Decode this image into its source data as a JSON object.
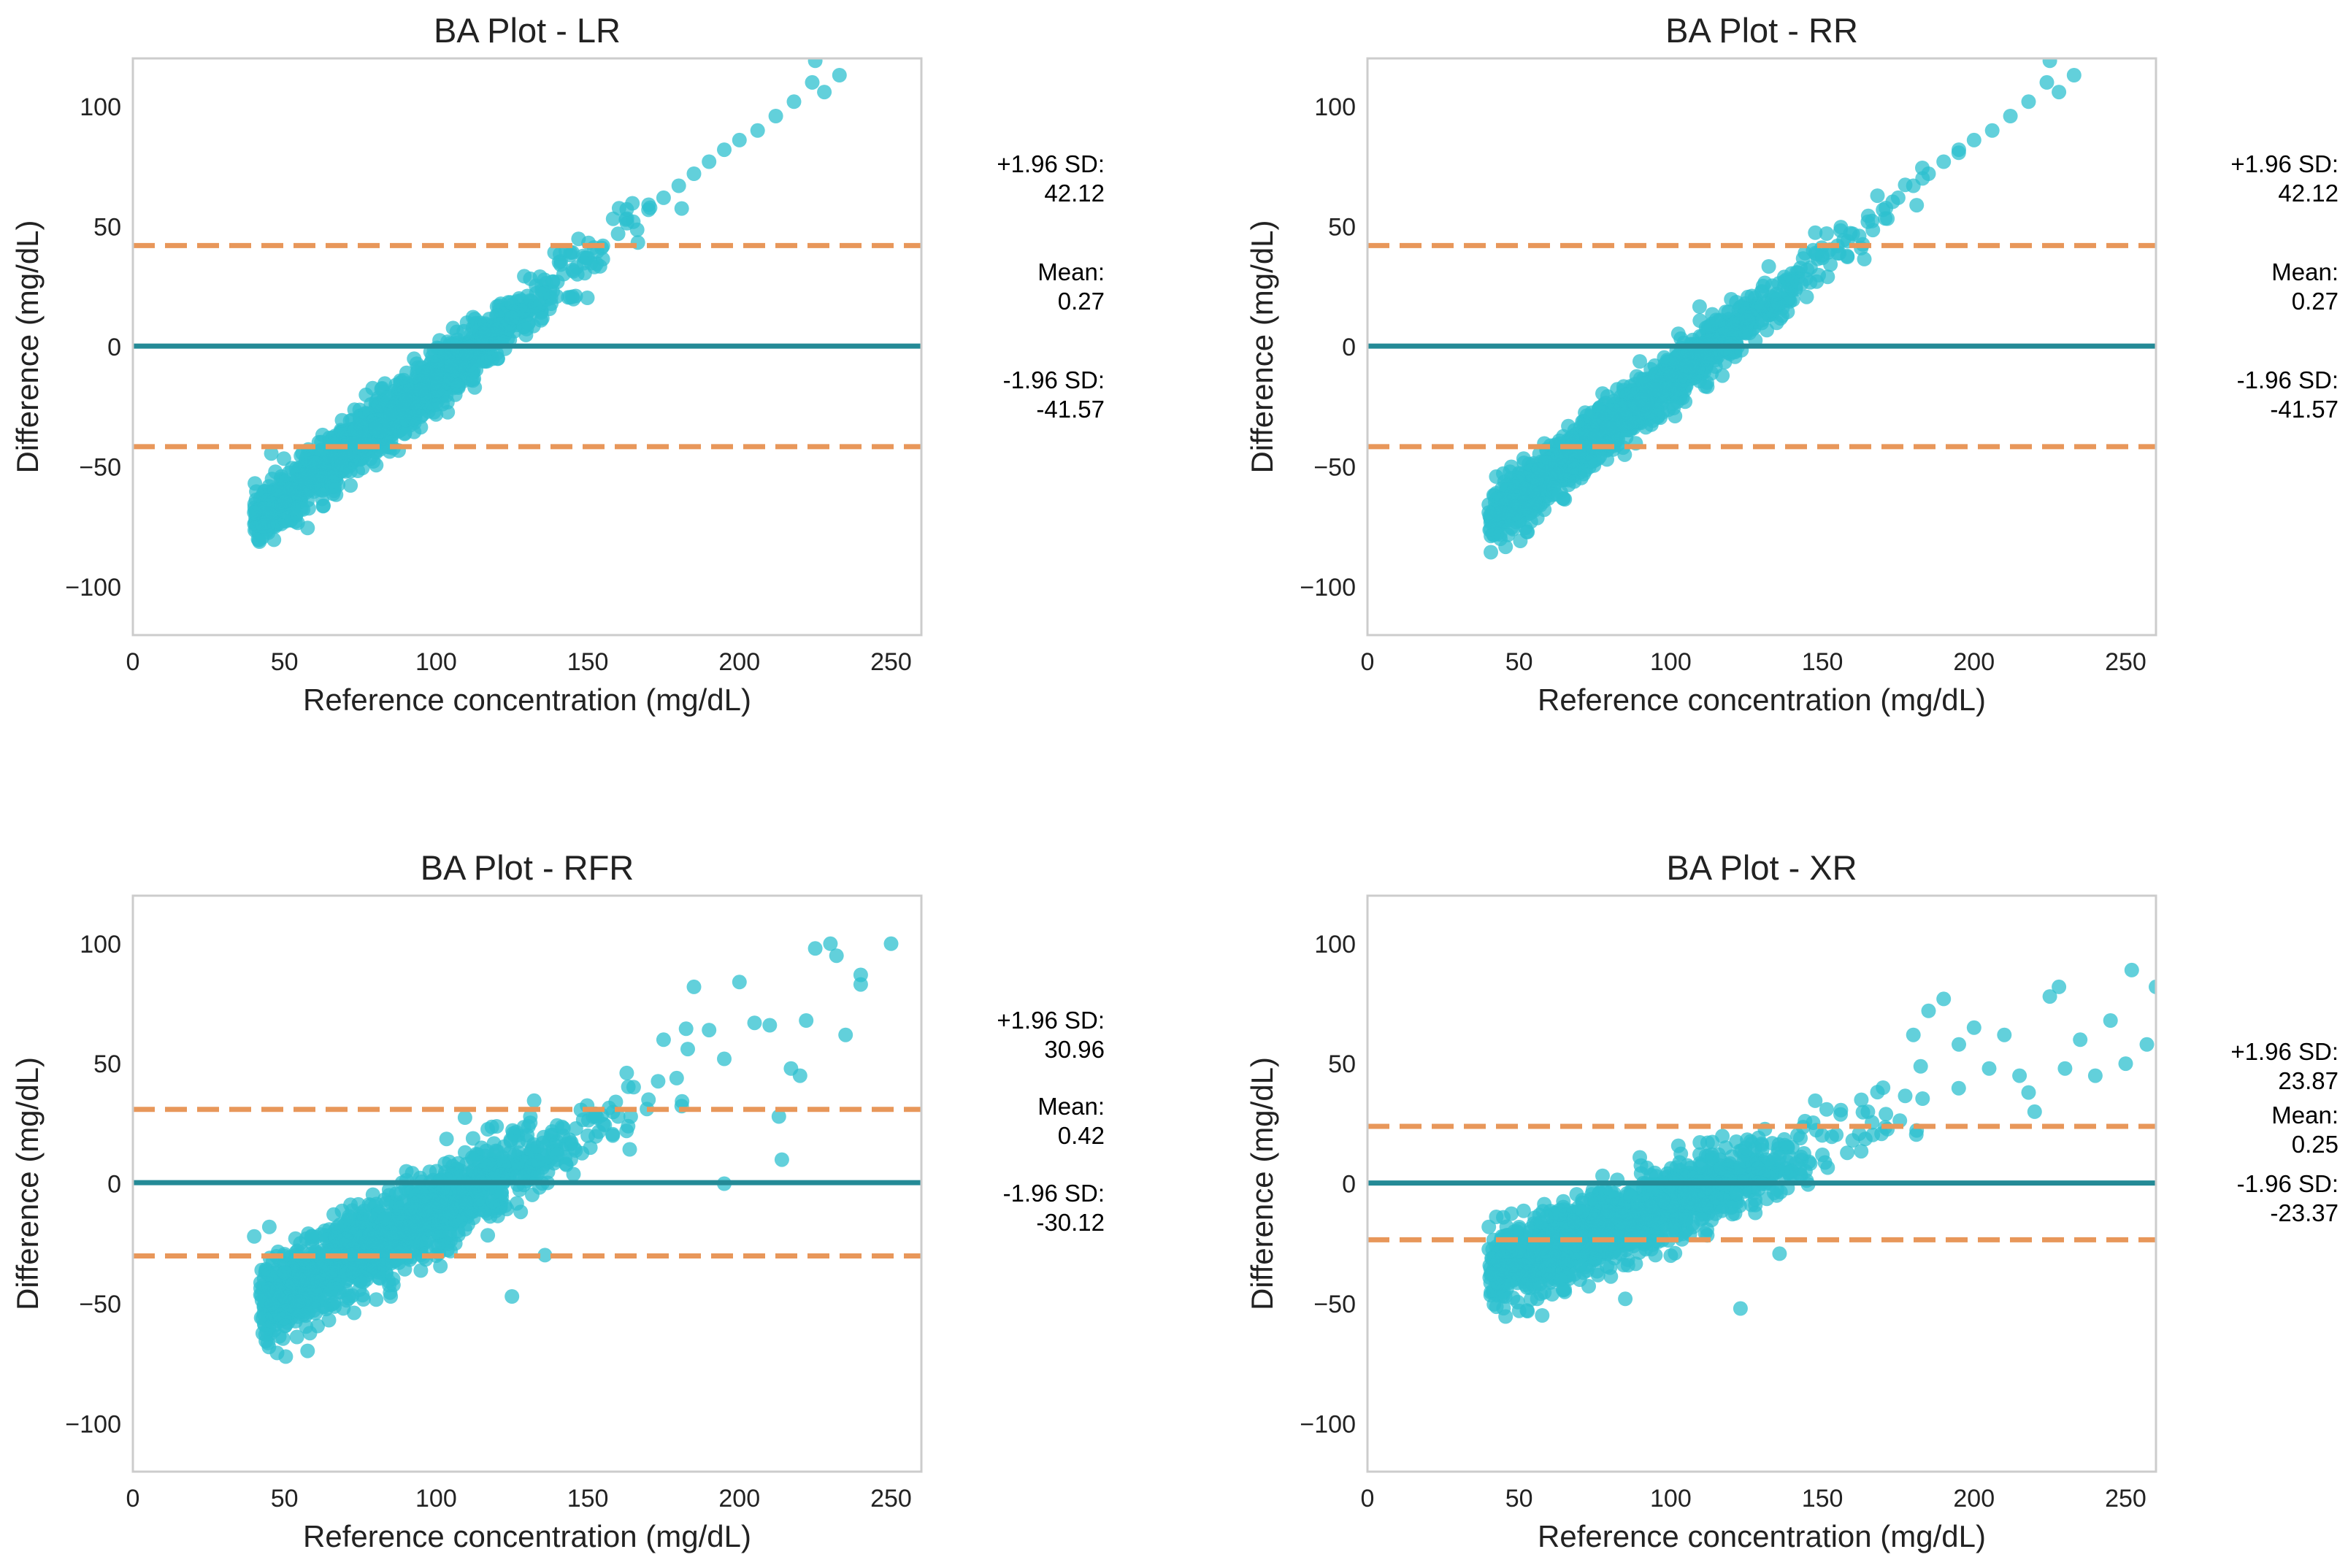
{
  "figure": {
    "layout": "2x2 grid",
    "colors": {
      "points": "#2ec0cf",
      "mean_line": "#248a96",
      "limit_lines": "#e8975a",
      "axes_frame": "#cccccc",
      "text": "#222222"
    }
  },
  "chart_data": [
    {
      "type": "scatter",
      "title": "BA Plot - LR",
      "xlabel": "Reference concentration (mg/dL)",
      "ylabel": "Difference (mg/dL)",
      "xlim": [
        0,
        260
      ],
      "ylim": [
        -120,
        120
      ],
      "xticks": [
        0,
        50,
        100,
        150,
        200,
        250
      ],
      "yticks": [
        -100,
        -50,
        0,
        50,
        100
      ],
      "grid": false,
      "mean": 0.27,
      "upper_loa": 42.12,
      "lower_loa": -41.57,
      "annotations": {
        "upper_label": "+1.96 SD:",
        "upper_value": "42.12",
        "mean_label": "Mean:",
        "mean_value": "0.27",
        "lower_label": "-1.96 SD:",
        "lower_value": "-41.57"
      },
      "point_cloud": {
        "x_range": [
          40,
          235
        ],
        "slope": 0.98,
        "intercept": -112,
        "noise_sd": 6
      },
      "points": [
        [
          40,
          -69
        ],
        [
          47,
          -52
        ],
        [
          52,
          -59
        ],
        [
          56,
          -55
        ],
        [
          60,
          -48
        ],
        [
          64,
          -46
        ],
        [
          70,
          -44
        ],
        [
          75,
          -38
        ],
        [
          80,
          -34
        ],
        [
          85,
          -28
        ],
        [
          90,
          -22
        ],
        [
          95,
          -18
        ],
        [
          100,
          -12
        ],
        [
          105,
          -8
        ],
        [
          110,
          -3
        ],
        [
          115,
          2
        ],
        [
          120,
          7
        ],
        [
          125,
          12
        ],
        [
          130,
          17
        ],
        [
          135,
          22
        ],
        [
          140,
          27
        ],
        [
          145,
          32
        ],
        [
          150,
          37
        ],
        [
          155,
          42
        ],
        [
          160,
          47
        ],
        [
          165,
          52
        ],
        [
          170,
          57
        ],
        [
          175,
          62
        ],
        [
          180,
          67
        ],
        [
          185,
          72
        ],
        [
          190,
          77
        ],
        [
          195,
          82
        ],
        [
          200,
          86
        ],
        [
          206,
          90
        ],
        [
          212,
          96
        ],
        [
          218,
          102
        ],
        [
          224,
          110
        ],
        [
          228,
          106
        ],
        [
          233,
          113
        ],
        [
          225,
          119
        ]
      ]
    },
    {
      "type": "scatter",
      "title": "BA Plot - RR",
      "xlabel": "Reference concentration (mg/dL)",
      "ylabel": "Difference (mg/dL)",
      "xlim": [
        0,
        260
      ],
      "ylim": [
        -120,
        120
      ],
      "xticks": [
        0,
        50,
        100,
        150,
        200,
        250
      ],
      "yticks": [
        -100,
        -50,
        0,
        50,
        100
      ],
      "grid": false,
      "mean": 0.27,
      "upper_loa": 42.12,
      "lower_loa": -41.57,
      "annotations": {
        "upper_label": "+1.96 SD:",
        "upper_value": "42.12",
        "mean_label": "Mean:",
        "mean_value": "0.27",
        "lower_label": "-1.96 SD:",
        "lower_value": "-41.57"
      },
      "point_cloud": {
        "x_range": [
          40,
          235
        ],
        "slope": 0.98,
        "intercept": -112,
        "noise_sd": 6
      },
      "points": [
        [
          40,
          -69
        ],
        [
          47,
          -52
        ],
        [
          52,
          -59
        ],
        [
          56,
          -55
        ],
        [
          60,
          -48
        ],
        [
          64,
          -46
        ],
        [
          70,
          -44
        ],
        [
          75,
          -38
        ],
        [
          80,
          -34
        ],
        [
          85,
          -28
        ],
        [
          90,
          -22
        ],
        [
          95,
          -18
        ],
        [
          100,
          -12
        ],
        [
          105,
          -8
        ],
        [
          110,
          -3
        ],
        [
          115,
          2
        ],
        [
          120,
          7
        ],
        [
          125,
          12
        ],
        [
          130,
          17
        ],
        [
          135,
          22
        ],
        [
          140,
          27
        ],
        [
          145,
          32
        ],
        [
          150,
          37
        ],
        [
          155,
          42
        ],
        [
          160,
          47
        ],
        [
          165,
          52
        ],
        [
          170,
          57
        ],
        [
          175,
          62
        ],
        [
          180,
          67
        ],
        [
          185,
          72
        ],
        [
          190,
          77
        ],
        [
          195,
          82
        ],
        [
          200,
          86
        ],
        [
          206,
          90
        ],
        [
          212,
          96
        ],
        [
          218,
          102
        ],
        [
          224,
          110
        ],
        [
          228,
          106
        ],
        [
          233,
          113
        ],
        [
          225,
          119
        ]
      ]
    },
    {
      "type": "scatter",
      "title": "BA Plot - RFR",
      "xlabel": "Reference concentration (mg/dL)",
      "ylabel": "Difference (mg/dL)",
      "xlim": [
        0,
        260
      ],
      "ylim": [
        -120,
        120
      ],
      "xticks": [
        0,
        50,
        100,
        150,
        200,
        250
      ],
      "yticks": [
        -100,
        -50,
        0,
        50,
        100
      ],
      "grid": false,
      "mean": 0.42,
      "upper_loa": 30.96,
      "lower_loa": -30.12,
      "annotations": {
        "upper_label": "+1.96 SD:",
        "upper_value": "30.96",
        "mean_label": "Mean:",
        "mean_value": "0.42",
        "lower_label": "-1.96 SD:",
        "lower_value": "-30.12"
      },
      "point_cloud": {
        "x_range": [
          42,
          250
        ],
        "slope": 0.68,
        "intercept": -79,
        "noise_sd": 9
      },
      "points": [
        [
          40,
          -22
        ],
        [
          45,
          -18
        ],
        [
          50,
          -56
        ],
        [
          50,
          -37
        ],
        [
          55,
          -40
        ],
        [
          60,
          -45
        ],
        [
          65,
          -28
        ],
        [
          70,
          -38
        ],
        [
          78,
          -30
        ],
        [
          85,
          -47
        ],
        [
          100,
          -30
        ],
        [
          105,
          -12
        ],
        [
          110,
          -8
        ],
        [
          120,
          -2
        ],
        [
          125,
          -47
        ],
        [
          130,
          5
        ],
        [
          140,
          12
        ],
        [
          150,
          20
        ],
        [
          160,
          28
        ],
        [
          170,
          35
        ],
        [
          175,
          60
        ],
        [
          185,
          82
        ],
        [
          190,
          64
        ],
        [
          195,
          52
        ],
        [
          200,
          84
        ],
        [
          205,
          67
        ],
        [
          210,
          66
        ],
        [
          213,
          28
        ],
        [
          214,
          10
        ],
        [
          217,
          48
        ],
        [
          220,
          45
        ],
        [
          222,
          68
        ],
        [
          225,
          98
        ],
        [
          230,
          100
        ],
        [
          232,
          95
        ],
        [
          235,
          62
        ],
        [
          240,
          83
        ],
        [
          240,
          87
        ],
        [
          250,
          100
        ],
        [
          195,
          0
        ]
      ]
    },
    {
      "type": "scatter",
      "title": "BA Plot - XR",
      "xlabel": "Reference concentration (mg/dL)",
      "ylabel": "Difference (mg/dL)",
      "xlim": [
        0,
        260
      ],
      "ylim": [
        -120,
        120
      ],
      "xticks": [
        0,
        50,
        100,
        150,
        200,
        250
      ],
      "yticks": [
        -100,
        -50,
        0,
        50,
        100
      ],
      "grid": false,
      "mean": 0.25,
      "upper_loa": 23.87,
      "lower_loa": -23.37,
      "annotations": {
        "upper_label": "+1.96 SD:",
        "upper_value": "23.87",
        "mean_label": "Mean:",
        "mean_value": "0.25",
        "lower_label": "-1.96 SD:",
        "lower_value": "-23.37"
      },
      "point_cloud": {
        "x_range": [
          40,
          260
        ],
        "slope": 0.48,
        "intercept": -56,
        "noise_sd": 8
      },
      "points": [
        [
          40,
          -18
        ],
        [
          45,
          -22
        ],
        [
          50,
          -53
        ],
        [
          50,
          -28
        ],
        [
          55,
          -38
        ],
        [
          60,
          -32
        ],
        [
          65,
          -44
        ],
        [
          70,
          -40
        ],
        [
          80,
          -35
        ],
        [
          85,
          -48
        ],
        [
          100,
          -30
        ],
        [
          110,
          -15
        ],
        [
          120,
          -10
        ],
        [
          123,
          -52
        ],
        [
          130,
          0
        ],
        [
          140,
          5
        ],
        [
          150,
          12
        ],
        [
          160,
          18
        ],
        [
          165,
          30
        ],
        [
          170,
          40
        ],
        [
          180,
          62
        ],
        [
          185,
          72
        ],
        [
          190,
          77
        ],
        [
          195,
          58
        ],
        [
          200,
          65
        ],
        [
          205,
          48
        ],
        [
          210,
          62
        ],
        [
          215,
          45
        ],
        [
          218,
          38
        ],
        [
          220,
          30
        ],
        [
          225,
          78
        ],
        [
          228,
          82
        ],
        [
          230,
          48
        ],
        [
          235,
          60
        ],
        [
          240,
          45
        ],
        [
          245,
          68
        ],
        [
          250,
          50
        ],
        [
          257,
          58
        ],
        [
          260,
          82
        ],
        [
          252,
          89
        ]
      ]
    }
  ]
}
